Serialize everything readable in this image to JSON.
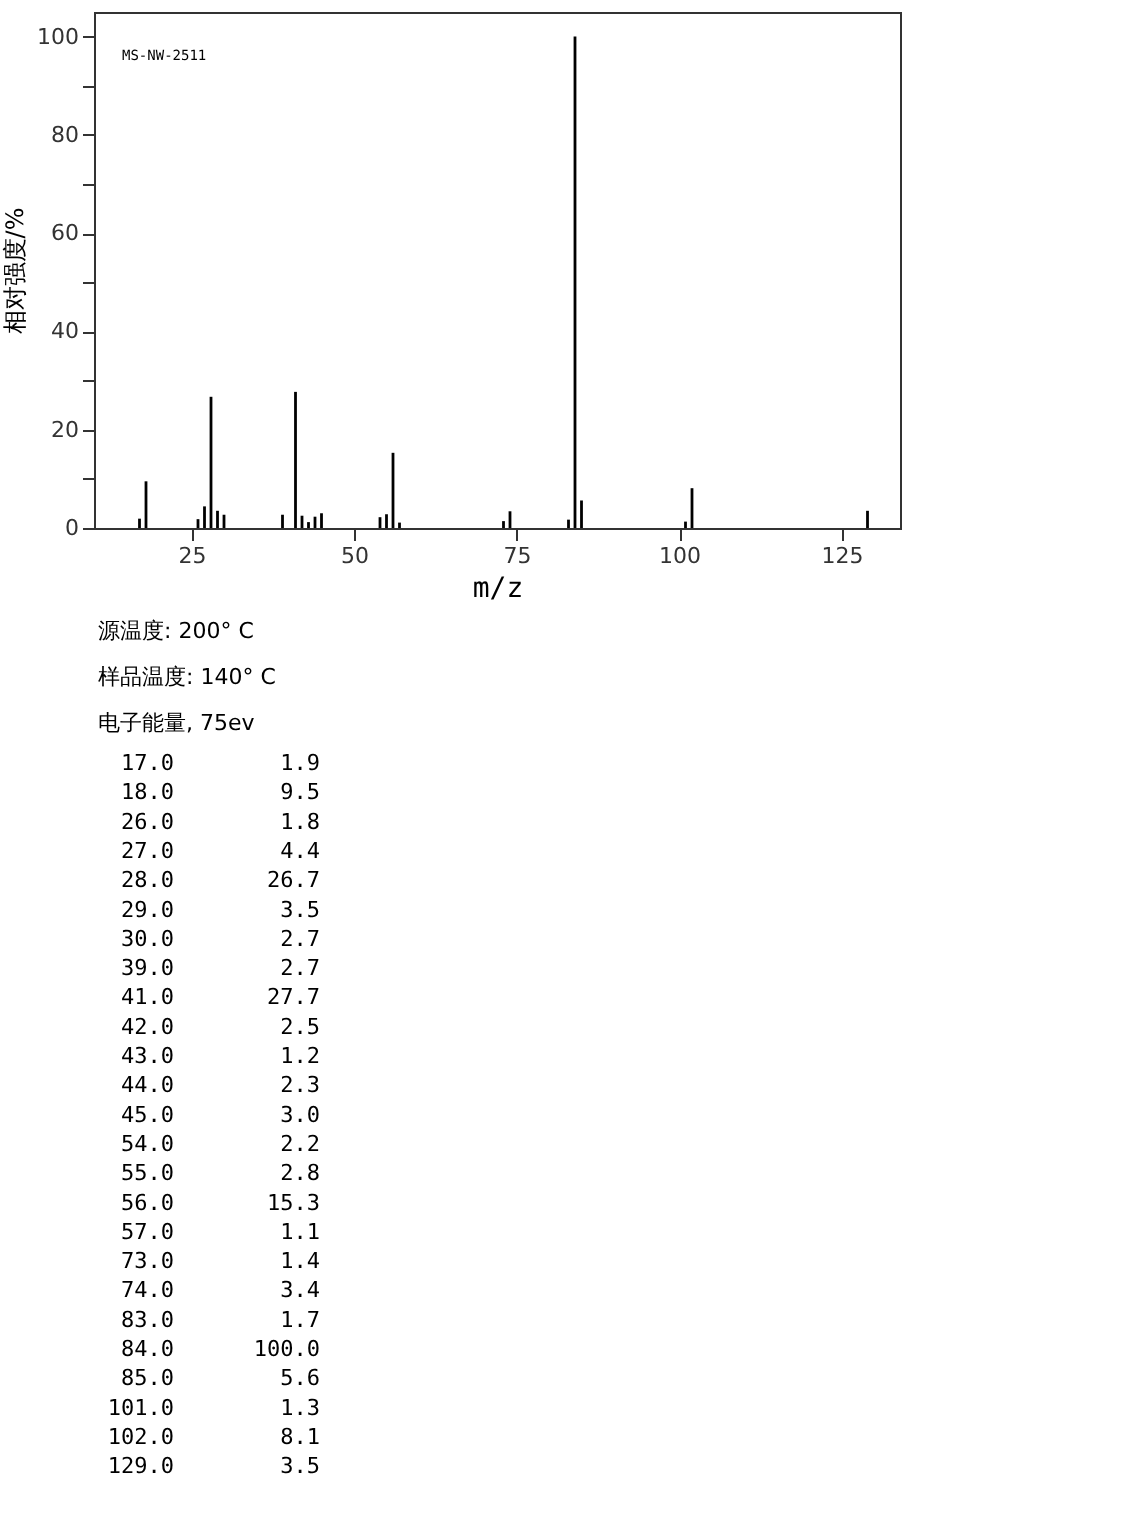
{
  "chart_data": [
    {
      "type": "bar",
      "xlabel": "m/z",
      "ylabel": "相对强度/%",
      "x": [
        17.0,
        18.0,
        26.0,
        27.0,
        28.0,
        29.0,
        30.0,
        39.0,
        41.0,
        42.0,
        43.0,
        44.0,
        45.0,
        54.0,
        55.0,
        56.0,
        57.0,
        73.0,
        74.0,
        83.0,
        84.0,
        85.0,
        101.0,
        102.0,
        129.0
      ],
      "series": [
        {
          "color": "#000000",
          "values": [
            1.9,
            9.5,
            1.8,
            4.4,
            26.7,
            3.5,
            2.7,
            2.7,
            27.7,
            2.5,
            1.2,
            2.3,
            3.0,
            2.2,
            2.8,
            15.3,
            1.1,
            1.4,
            3.4,
            1.7,
            100.0,
            5.6,
            1.3,
            8.1,
            3.5
          ]
        }
      ],
      "xlim": [
        10,
        134
      ],
      "ylim": [
        0,
        105
      ],
      "xticks": [
        25,
        50,
        75,
        100,
        125
      ],
      "yticks": [
        0,
        {
          "value": 10,
          "label": null
        },
        20,
        {
          "value": 30,
          "label": null
        },
        40,
        {
          "value": 50,
          "label": null
        },
        60,
        {
          "value": 70,
          "label": null
        },
        80,
        {
          "value": 90,
          "label": null
        },
        100
      ],
      "grid": false,
      "annotations": [
        "MS-NW-2511",
        "源温度: 200° C",
        "样品温度: 140° C",
        "电子能量, 75ev"
      ]
    },
    {
      "type": "other",
      "categories": [
        "17.0",
        "18.0",
        "26.0",
        "27.0",
        "28.0",
        "29.0",
        "30.0",
        "39.0",
        "41.0",
        "42.0",
        "43.0",
        "44.0",
        "45.0",
        "54.0",
        "55.0",
        "56.0",
        "57.0",
        "73.0",
        "74.0",
        "83.0",
        "84.0",
        "85.0",
        "101.0",
        "102.0",
        "129.0"
      ],
      "values": [
        1.9,
        9.5,
        1.8,
        4.4,
        26.7,
        3.5,
        2.7,
        2.7,
        27.7,
        2.5,
        1.2,
        2.3,
        3.0,
        2.2,
        2.8,
        15.3,
        1.1,
        1.4,
        3.4,
        1.7,
        100.0,
        5.6,
        1.3,
        8.1,
        3.5
      ],
      "value_labels": [
        "1.9",
        "9.5",
        "1.8",
        "4.4",
        "26.7",
        "3.5",
        "2.7",
        "2.7",
        "27.7",
        "2.5",
        "1.2",
        "2.3",
        "3.0",
        "2.2",
        "2.8",
        "15.3",
        "1.1",
        "1.4",
        "3.4",
        "1.7",
        "100.0",
        "5.6",
        "1.3",
        "8.1",
        "3.5"
      ]
    }
  ]
}
